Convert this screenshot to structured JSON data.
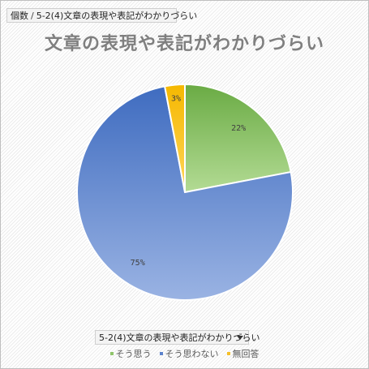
{
  "header": {
    "breadcrumb_prefix": "個数",
    "separator": "/",
    "field_name": "5-2(4)文章の表現や表記がわかりづらい"
  },
  "chart_data": {
    "type": "pie",
    "title": "文章の表現や表記がわかりづらい",
    "categories": [
      "そう思う",
      "そう思わない",
      "無回答"
    ],
    "values": [
      22,
      75,
      3
    ],
    "labels": [
      "22%",
      "75%",
      "3%"
    ],
    "colors": [
      "#8fc46a",
      "#5b82cc",
      "#f5c02a"
    ],
    "legend_position": "bottom"
  },
  "filter": {
    "field_name": "5-2(4)文章の表現や表記がわかりづらい"
  }
}
